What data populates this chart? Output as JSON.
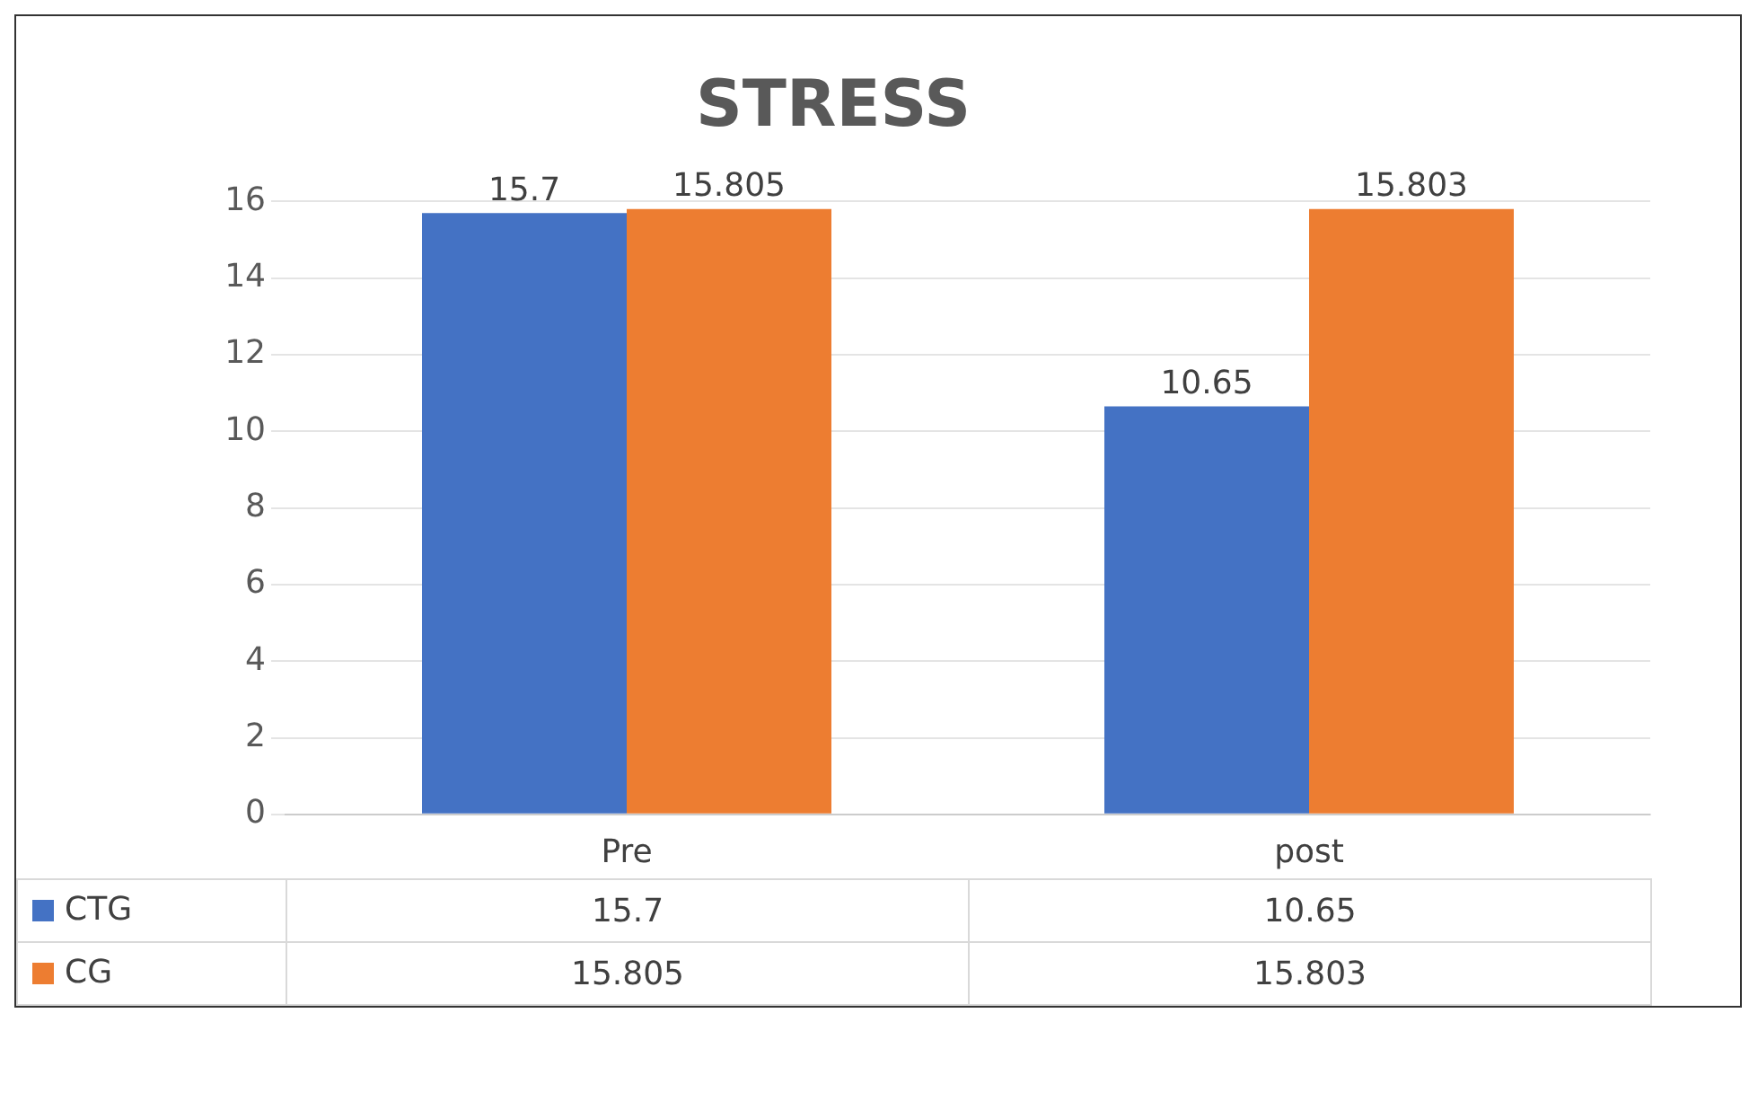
{
  "chart_data": {
    "type": "bar",
    "title": "STRESS",
    "categories": [
      "Pre",
      "post"
    ],
    "series": [
      {
        "name": "CTG",
        "color": "#4472c4",
        "values": [
          15.7,
          10.65
        ]
      },
      {
        "name": "CG",
        "color": "#ed7d31",
        "values": [
          15.805,
          15.803
        ]
      }
    ],
    "ylim": [
      0,
      16
    ],
    "yticks": [
      0,
      2,
      4,
      6,
      8,
      10,
      12,
      14,
      16
    ],
    "grid": "y",
    "data_labels": true,
    "legend": "bottom",
    "annotations": [
      "15.7",
      "10.65",
      "15.805",
      "15.803"
    ]
  }
}
